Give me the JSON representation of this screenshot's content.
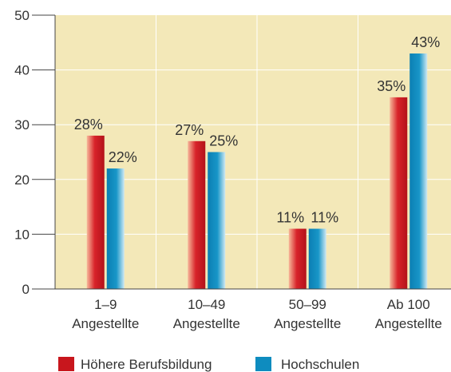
{
  "chart_data": {
    "type": "bar",
    "categories": [
      [
        "1–9",
        "Angestellte"
      ],
      [
        "10–49",
        "Angestellte"
      ],
      [
        "50–99",
        "Angestellte"
      ],
      [
        "Ab 100",
        "Angestellte"
      ]
    ],
    "series": [
      {
        "name": "Höhere Berufsbildung",
        "values": [
          28,
          27,
          11,
          35
        ],
        "labels": [
          "28%",
          "27%",
          "11%",
          "35%"
        ],
        "color": "#c8161d"
      },
      {
        "name": "Hochschulen",
        "values": [
          22,
          25,
          11,
          43
        ],
        "labels": [
          "22%",
          "25%",
          "11%",
          "43%"
        ],
        "color": "#0e8cbf"
      }
    ],
    "y_ticks": [
      "0",
      "10",
      "20",
      "30",
      "40",
      "50"
    ],
    "ylim": [
      0,
      50
    ],
    "plot_background": "#f3e8b8",
    "grid": true,
    "legend_position": "bottom"
  }
}
